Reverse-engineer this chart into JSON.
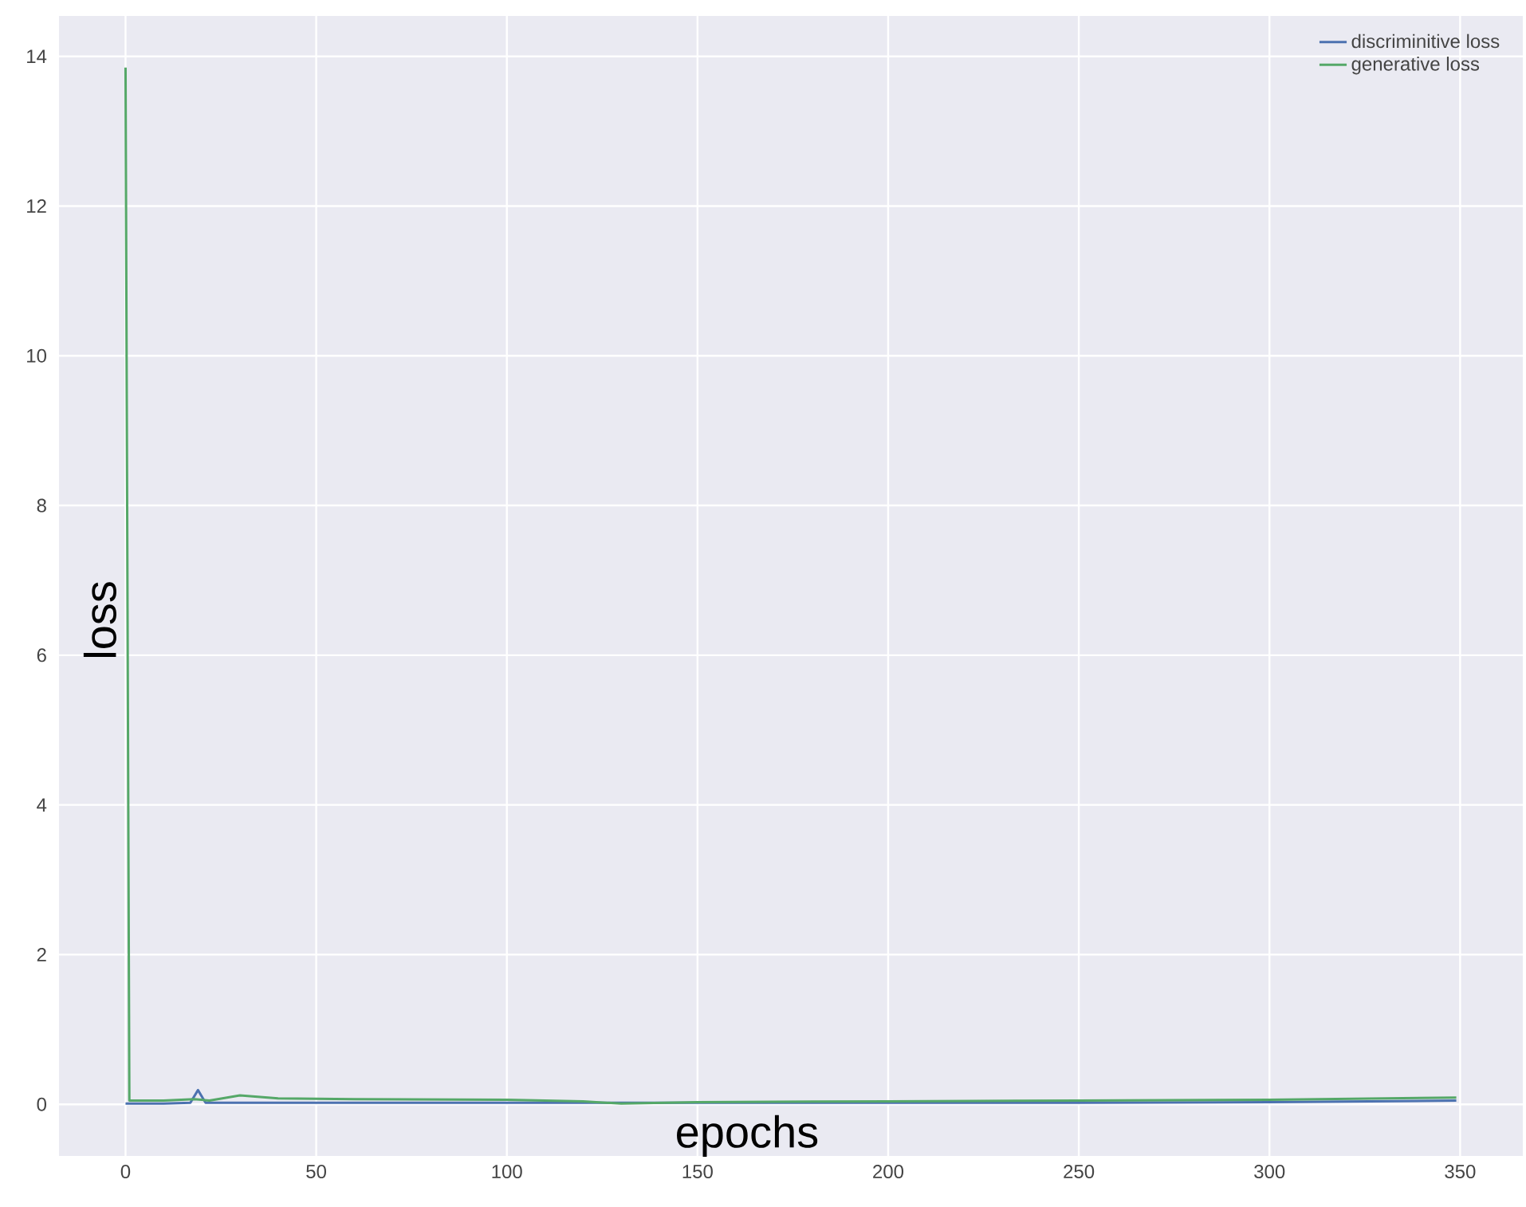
{
  "chart_data": {
    "type": "line",
    "xlabel": "epochs",
    "ylabel": "loss",
    "xlim": [
      -17.45,
      366.45
    ],
    "ylim": [
      -0.69,
      14.54
    ],
    "xticks": [
      0,
      50,
      100,
      150,
      200,
      250,
      300,
      350
    ],
    "yticks": [
      0,
      2,
      4,
      6,
      8,
      10,
      12,
      14
    ],
    "grid": true,
    "legend": "top right",
    "line_style": "solid",
    "marker": "none",
    "series": [
      {
        "name": "discriminitive loss",
        "color": "#4c72b0",
        "x": [
          0,
          10,
          17,
          19,
          21,
          30,
          50,
          100,
          150,
          200,
          250,
          300,
          349
        ],
        "values": [
          0.01,
          0.01,
          0.02,
          0.19,
          0.02,
          0.02,
          0.02,
          0.02,
          0.02,
          0.02,
          0.02,
          0.03,
          0.05
        ]
      },
      {
        "name": "generative loss",
        "color": "#55a868",
        "x": [
          0,
          1,
          10,
          18,
          22,
          30,
          40,
          60,
          100,
          120,
          130,
          150,
          200,
          250,
          300,
          349
        ],
        "values": [
          13.85,
          0.05,
          0.05,
          0.07,
          0.05,
          0.12,
          0.08,
          0.07,
          0.06,
          0.04,
          0.01,
          0.03,
          0.04,
          0.05,
          0.06,
          0.09
        ]
      }
    ]
  }
}
